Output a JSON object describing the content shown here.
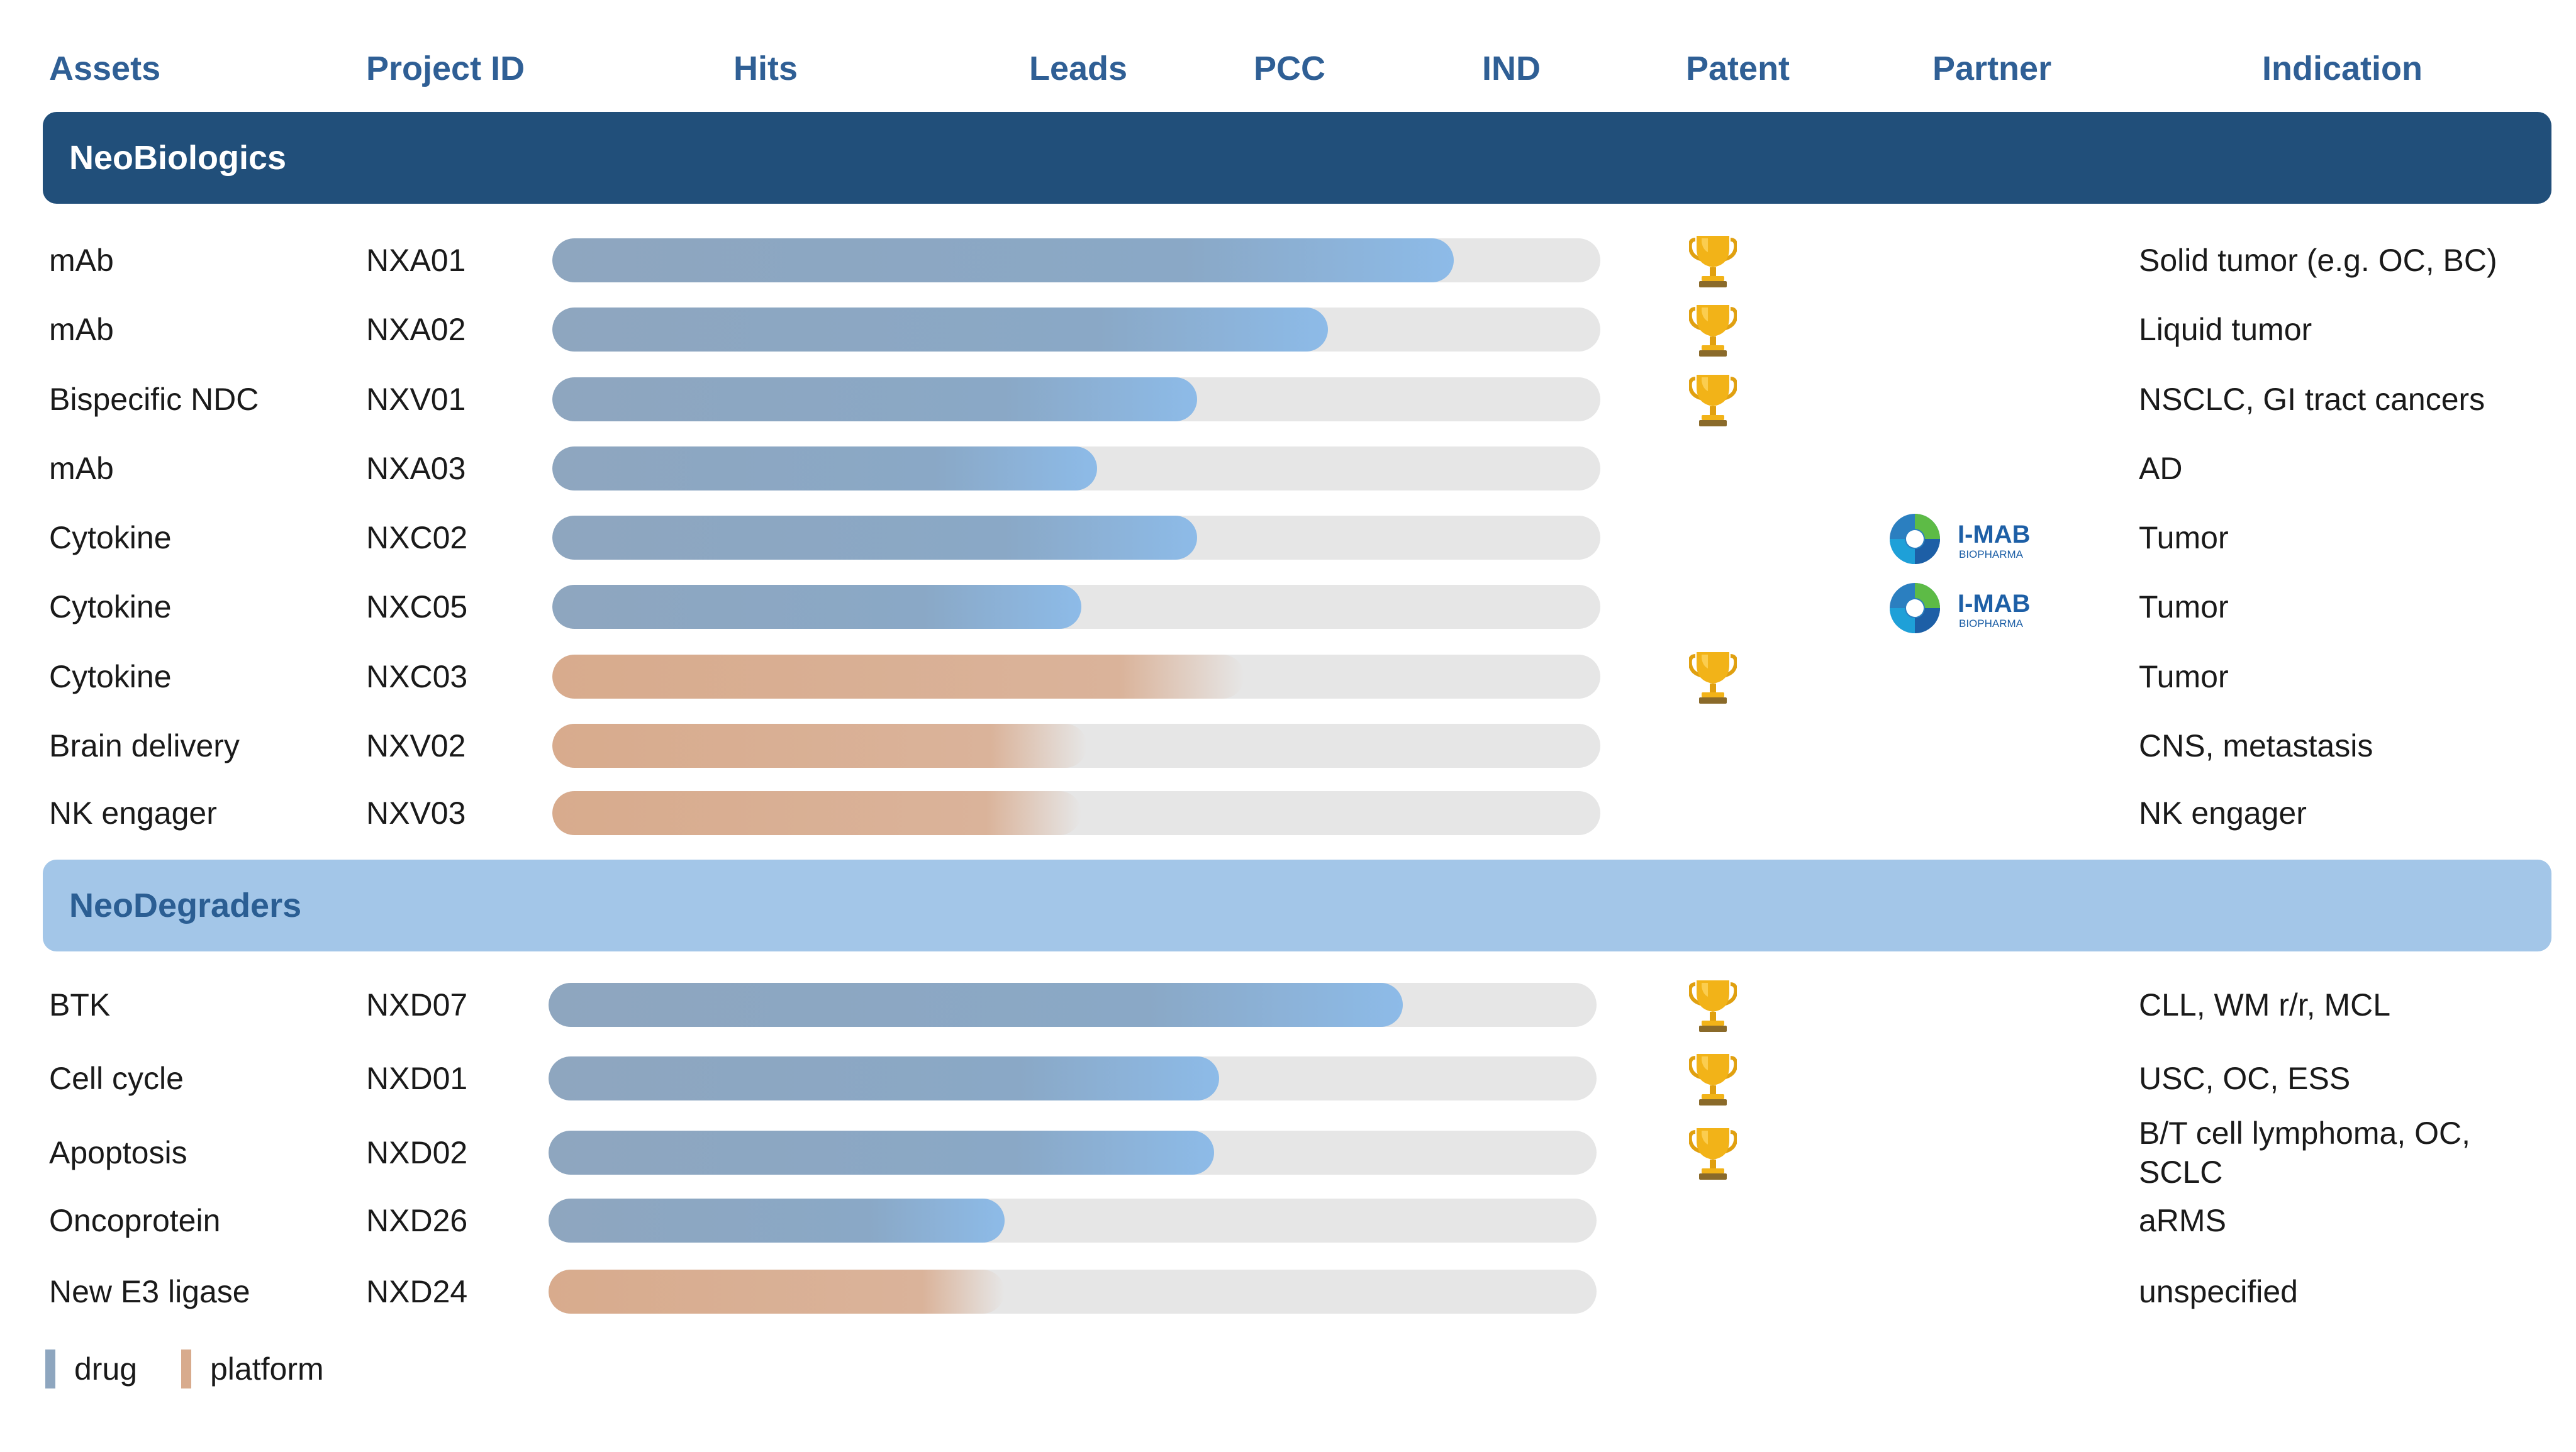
{
  "chart_data": {
    "type": "bar",
    "columns": [
      "Assets",
      "Project ID",
      "Hits",
      "Leads",
      "PCC",
      "IND",
      "Patent",
      "Partner",
      "Indication"
    ],
    "stage_axis": [
      "Hits",
      "Leads",
      "PCC",
      "IND"
    ],
    "groups": [
      {
        "name": "NeoBiologics",
        "rows": [
          {
            "asset": "mAb",
            "project_id": "NXA01",
            "progress": 0.86,
            "type": "drug",
            "patent": true,
            "partner": "",
            "indication": "Solid tumor (e.g. OC, BC)"
          },
          {
            "asset": "mAb",
            "project_id": "NXA02",
            "progress": 0.74,
            "type": "drug",
            "patent": true,
            "partner": "",
            "indication": "Liquid tumor"
          },
          {
            "asset": "Bispecific NDC",
            "project_id": "NXV01",
            "progress": 0.615,
            "type": "drug",
            "patent": true,
            "partner": "",
            "indication": "NSCLC, GI tract cancers"
          },
          {
            "asset": "mAb",
            "project_id": "NXA03",
            "progress": 0.52,
            "type": "drug",
            "patent": false,
            "partner": "",
            "indication": "AD"
          },
          {
            "asset": "Cytokine",
            "project_id": "NXC02",
            "progress": 0.615,
            "type": "drug",
            "patent": false,
            "partner": "I-MAB",
            "indication": "Tumor"
          },
          {
            "asset": "Cytokine",
            "project_id": "NXC05",
            "progress": 0.505,
            "type": "drug",
            "patent": false,
            "partner": "I-MAB",
            "indication": "Tumor"
          },
          {
            "asset": "Cytokine",
            "project_id": "NXC03",
            "progress": 0.66,
            "type": "platform",
            "patent": true,
            "partner": "",
            "indication": "Tumor"
          },
          {
            "asset": "Brain delivery",
            "project_id": "NXV02",
            "progress": 0.51,
            "type": "platform",
            "patent": false,
            "partner": "",
            "indication": "CNS, metastasis"
          },
          {
            "asset": "NK engager",
            "project_id": "NXV03",
            "progress": 0.505,
            "type": "platform",
            "patent": false,
            "partner": "",
            "indication": "NK engager"
          }
        ]
      },
      {
        "name": "NeoDegraders",
        "rows": [
          {
            "asset": "BTK",
            "project_id": "NXD07",
            "progress": 0.815,
            "type": "drug",
            "patent": true,
            "partner": "",
            "indication": "CLL, WM r/r, MCL"
          },
          {
            "asset": "Cell cycle",
            "project_id": "NXD01",
            "progress": 0.64,
            "type": "drug",
            "patent": true,
            "partner": "",
            "indication": "USC, OC, ESS"
          },
          {
            "asset": "Apoptosis",
            "project_id": "NXD02",
            "progress": 0.635,
            "type": "drug",
            "patent": true,
            "partner": "",
            "indication": "B/T cell lymphoma, OC, SCLC"
          },
          {
            "asset": "Oncoprotein",
            "project_id": "NXD26",
            "progress": 0.435,
            "type": "drug",
            "patent": false,
            "partner": "",
            "indication": "aRMS"
          },
          {
            "asset": "New E3 ligase",
            "project_id": "NXD24",
            "progress": 0.435,
            "type": "platform",
            "patent": false,
            "partner": "",
            "indication": "unspecified"
          }
        ]
      }
    ],
    "legend": [
      {
        "label": "drug",
        "color": "#8ea6bf"
      },
      {
        "label": "platform",
        "color": "#d8ab8d"
      }
    ]
  },
  "partner_logo": {
    "mark": "I-MAB",
    "sub": "BIOPHARMA"
  },
  "colors": {
    "header_text": "#2f5f95",
    "band_dark": "#214f7a",
    "band_light": "#a3c6e8",
    "track": "#e6e6e6",
    "trophy": "#f2b318"
  },
  "icons": {
    "patent": "trophy-icon",
    "partner": "i-mab-logo"
  }
}
